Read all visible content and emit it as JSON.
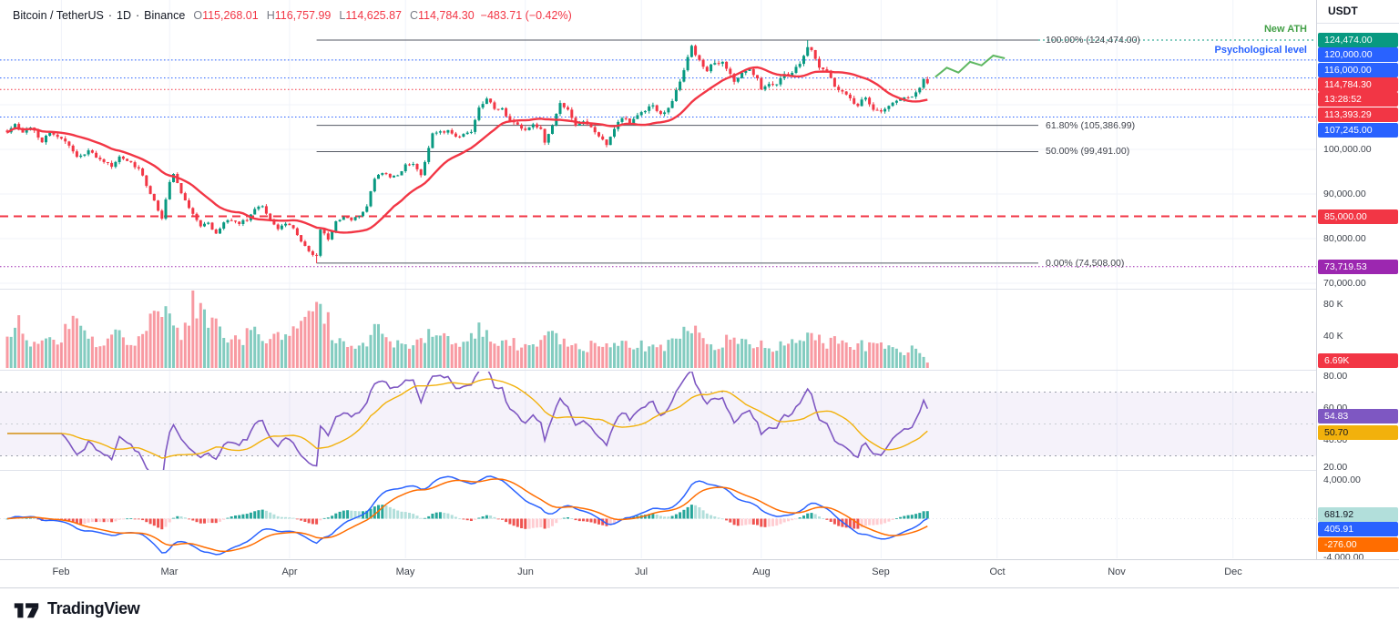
{
  "header": {
    "symbol": "Bitcoin / TetherUS",
    "dot1": "·",
    "interval": "1D",
    "dot2": "·",
    "exchange": "Binance",
    "o_label": "O",
    "o": "115,268.01",
    "h_label": "H",
    "h": "116,757.99",
    "l_label": "L",
    "l": "114,625.87",
    "c_label": "C",
    "c": "114,784.30",
    "change": "−483.71 (−0.42%)"
  },
  "axis": {
    "currency": "USDT",
    "main_ticks": [
      {
        "label": "100,000.00",
        "value": 100000
      },
      {
        "label": "90,000.00",
        "value": 90000
      },
      {
        "label": "80,000.00",
        "value": 80000
      },
      {
        "label": "70,000.00",
        "value": 70000
      }
    ],
    "volume_ticks": [
      {
        "label": "80 K",
        "value": 80000
      },
      {
        "label": "40 K",
        "value": 40000
      }
    ],
    "rsi_ticks": [
      {
        "label": "80.00",
        "value": 80
      },
      {
        "label": "60.00",
        "value": 60
      },
      {
        "label": "40.00",
        "value": 40
      },
      {
        "label": "20.00",
        "value": 20
      }
    ],
    "macd_ticks": [
      {
        "label": "4,000.00",
        "value": 4000
      },
      {
        "label": "-4,000.00",
        "value": -4000
      }
    ],
    "badges": [
      {
        "label": "124,474.00",
        "bg": "#089981",
        "fg": "#ffffff"
      },
      {
        "label": "120,000.00",
        "bg": "#2962ff",
        "fg": "#ffffff"
      },
      {
        "label": "116,000.00",
        "bg": "#2962ff",
        "fg": "#ffffff"
      },
      {
        "label": "114,784.30",
        "bg": "#f23645",
        "fg": "#ffffff"
      },
      {
        "label": "13:28:52",
        "bg": "#f23645",
        "fg": "#ffffff"
      },
      {
        "label": "113,393.29",
        "bg": "#f23645",
        "fg": "#ffffff"
      },
      {
        "label": "107,245.00",
        "bg": "#2962ff",
        "fg": "#ffffff"
      },
      {
        "label": "85,000.00",
        "bg": "#f23645",
        "fg": "#ffffff"
      },
      {
        "label": "73,719.53",
        "bg": "#9c27b0",
        "fg": "#ffffff"
      },
      {
        "label": "6.69K",
        "bg": "#f23645",
        "fg": "#ffffff"
      },
      {
        "label": "54.83",
        "bg": "#7e57c2",
        "fg": "#ffffff"
      },
      {
        "label": "50.70",
        "bg": "#f2b10c",
        "fg": "#131722"
      },
      {
        "label": "681.92",
        "bg": "#b2dfdb",
        "fg": "#131722"
      },
      {
        "label": "405.91",
        "bg": "#2962ff",
        "fg": "#ffffff"
      },
      {
        "label": "-276.00",
        "bg": "#ff6d00",
        "fg": "#ffffff"
      }
    ]
  },
  "annotations": {
    "new_ath": {
      "text": "New ATH",
      "color": "#43a047"
    },
    "psych": {
      "text": "Psychological level",
      "color": "#2962ff"
    }
  },
  "time_axis": {
    "months": [
      {
        "label": "Feb",
        "day": 14
      },
      {
        "label": "Mar",
        "day": 42
      },
      {
        "label": "Apr",
        "day": 73
      },
      {
        "label": "May",
        "day": 103
      },
      {
        "label": "Jun",
        "day": 134
      },
      {
        "label": "Jul",
        "day": 164
      },
      {
        "label": "Aug",
        "day": 195
      },
      {
        "label": "Sep",
        "day": 226
      },
      {
        "label": "Oct",
        "day": 256
      },
      {
        "label": "Nov",
        "day": 287
      },
      {
        "label": "Dec",
        "day": 317
      }
    ]
  },
  "footer": {
    "logo_text": "TradingView"
  },
  "chart_data": {
    "type": "candlestick",
    "symbol": "Bitcoin / TetherUS",
    "interval": "1D",
    "exchange": "Binance",
    "ohlc_today": {
      "open": 115268.01,
      "high": 116757.99,
      "low": 114625.87,
      "close": 114784.3,
      "change": -483.71,
      "change_pct": -0.42
    },
    "last_day": 238,
    "last_close": 114784.3,
    "last_volume": 6690,
    "ath": 124474.0,
    "ath_day": 207,
    "fib_low": 74508.0,
    "fib_low_day": 80,
    "price_axis_range": [
      69000,
      128500
    ],
    "levels": {
      "fib": [
        {
          "label": "100.00% (124,474.00)",
          "pct": 100.0,
          "value": 124474.0
        },
        {
          "label": "61.80% (105,386.99)",
          "pct": 61.8,
          "value": 105386.99
        },
        {
          "label": "50.00% (99,491.00)",
          "pct": 50.0,
          "value": 99491.0
        },
        {
          "label": "0.00% (74,508.00)",
          "pct": 0.0,
          "value": 74508.0
        }
      ],
      "dotted_blue": [
        120000,
        116000,
        107245
      ],
      "dotted_red": [
        113393.29
      ],
      "dashed_red": [
        85000
      ],
      "dotted_purple": [
        73719.53
      ],
      "dotted_green": [
        124474
      ]
    },
    "indicators": {
      "ma": {
        "type": "SMA",
        "length": 20,
        "color": "#f23645"
      },
      "rsi": {
        "value": 54.83,
        "ma_value": 50.7
      },
      "macd": {
        "histogram": 681.92,
        "macd": 405.91,
        "signal": -276.0
      },
      "volume_last_label": "6.69K"
    },
    "price_anchors": [
      [
        0,
        104000
      ],
      [
        2,
        105800
      ],
      [
        4,
        103600
      ],
      [
        6,
        105200
      ],
      [
        9,
        101800
      ],
      [
        11,
        103900
      ],
      [
        14,
        102400
      ],
      [
        16,
        100900
      ],
      [
        18,
        98200
      ],
      [
        21,
        99600
      ],
      [
        24,
        97900
      ],
      [
        27,
        96400
      ],
      [
        29,
        98100
      ],
      [
        32,
        96800
      ],
      [
        34,
        95800
      ],
      [
        36,
        92100
      ],
      [
        38,
        88300
      ],
      [
        40,
        84600
      ],
      [
        42,
        92500
      ],
      [
        43,
        94200
      ],
      [
        45,
        90400
      ],
      [
        47,
        86800
      ],
      [
        50,
        82900
      ],
      [
        52,
        83600
      ],
      [
        54,
        81000
      ],
      [
        56,
        83900
      ],
      [
        58,
        84100
      ],
      [
        60,
        83400
      ],
      [
        62,
        84300
      ],
      [
        64,
        86900
      ],
      [
        66,
        87400
      ],
      [
        68,
        84000
      ],
      [
        70,
        82300
      ],
      [
        72,
        83500
      ],
      [
        74,
        82400
      ],
      [
        76,
        79600
      ],
      [
        78,
        76900
      ],
      [
        80,
        76300
      ],
      [
        81,
        82100
      ],
      [
        83,
        79900
      ],
      [
        85,
        83600
      ],
      [
        87,
        84700
      ],
      [
        89,
        84400
      ],
      [
        91,
        85100
      ],
      [
        93,
        87300
      ],
      [
        95,
        93400
      ],
      [
        97,
        94600
      ],
      [
        99,
        93900
      ],
      [
        101,
        94200
      ],
      [
        103,
        96500
      ],
      [
        105,
        96900
      ],
      [
        107,
        94100
      ],
      [
        110,
        103300
      ],
      [
        112,
        104000
      ],
      [
        114,
        104100
      ],
      [
        116,
        102700
      ],
      [
        118,
        103500
      ],
      [
        120,
        104200
      ],
      [
        122,
        109700
      ],
      [
        124,
        111300
      ],
      [
        126,
        109100
      ],
      [
        128,
        108900
      ],
      [
        130,
        106100
      ],
      [
        132,
        105600
      ],
      [
        134,
        104200
      ],
      [
        136,
        105700
      ],
      [
        138,
        104700
      ],
      [
        139,
        101500
      ],
      [
        141,
        105400
      ],
      [
        143,
        110300
      ],
      [
        145,
        108900
      ],
      [
        147,
        105200
      ],
      [
        149,
        106100
      ],
      [
        151,
        104800
      ],
      [
        153,
        103200
      ],
      [
        155,
        100900
      ],
      [
        157,
        104700
      ],
      [
        159,
        107300
      ],
      [
        161,
        106000
      ],
      [
        163,
        107300
      ],
      [
        165,
        108900
      ],
      [
        167,
        109600
      ],
      [
        169,
        108000
      ],
      [
        171,
        108900
      ],
      [
        173,
        113300
      ],
      [
        175,
        117600
      ],
      [
        177,
        123100
      ],
      [
        179,
        119800
      ],
      [
        181,
        117900
      ],
      [
        183,
        119300
      ],
      [
        185,
        119700
      ],
      [
        187,
        117200
      ],
      [
        188,
        115100
      ],
      [
        190,
        117400
      ],
      [
        192,
        118100
      ],
      [
        194,
        115800
      ],
      [
        195,
        113300
      ],
      [
        197,
        114900
      ],
      [
        199,
        114400
      ],
      [
        201,
        116700
      ],
      [
        203,
        117000
      ],
      [
        205,
        119400
      ],
      [
        207,
        123300
      ],
      [
        208,
        122100
      ],
      [
        210,
        118300
      ],
      [
        212,
        117400
      ],
      [
        214,
        113900
      ],
      [
        216,
        112800
      ],
      [
        218,
        111300
      ],
      [
        220,
        109700
      ],
      [
        222,
        111900
      ],
      [
        224,
        108700
      ],
      [
        226,
        108200
      ],
      [
        228,
        110100
      ],
      [
        230,
        110500
      ],
      [
        232,
        111300
      ],
      [
        234,
        112000
      ],
      [
        236,
        113800
      ],
      [
        237,
        115600
      ],
      [
        238,
        114784.3
      ]
    ],
    "volume_anchors": [
      [
        0,
        32000
      ],
      [
        3,
        55000
      ],
      [
        6,
        28000
      ],
      [
        9,
        40000
      ],
      [
        12,
        30000
      ],
      [
        15,
        45000
      ],
      [
        18,
        60000
      ],
      [
        21,
        35000
      ],
      [
        24,
        28000
      ],
      [
        27,
        42000
      ],
      [
        30,
        38000
      ],
      [
        33,
        30000
      ],
      [
        36,
        52000
      ],
      [
        38,
        78000
      ],
      [
        40,
        70000
      ],
      [
        42,
        60000
      ],
      [
        45,
        45000
      ],
      [
        48,
        80000
      ],
      [
        50,
        72000
      ],
      [
        52,
        50000
      ],
      [
        54,
        62000
      ],
      [
        57,
        40000
      ],
      [
        60,
        35000
      ],
      [
        63,
        45000
      ],
      [
        66,
        38000
      ],
      [
        69,
        42000
      ],
      [
        72,
        35000
      ],
      [
        75,
        48000
      ],
      [
        78,
        65000
      ],
      [
        80,
        85000
      ],
      [
        81,
        80000
      ],
      [
        84,
        45000
      ],
      [
        87,
        38000
      ],
      [
        90,
        30000
      ],
      [
        93,
        36000
      ],
      [
        95,
        48000
      ],
      [
        98,
        35000
      ],
      [
        101,
        28000
      ],
      [
        104,
        32000
      ],
      [
        107,
        30000
      ],
      [
        110,
        48000
      ],
      [
        113,
        35000
      ],
      [
        116,
        30000
      ],
      [
        119,
        32000
      ],
      [
        122,
        45000
      ],
      [
        125,
        38000
      ],
      [
        128,
        32000
      ],
      [
        131,
        30000
      ],
      [
        134,
        28000
      ],
      [
        137,
        30000
      ],
      [
        139,
        38000
      ],
      [
        143,
        40000
      ],
      [
        146,
        30000
      ],
      [
        149,
        26000
      ],
      [
        152,
        28000
      ],
      [
        155,
        35000
      ],
      [
        158,
        32000
      ],
      [
        161,
        26000
      ],
      [
        164,
        28000
      ],
      [
        167,
        30000
      ],
      [
        170,
        26000
      ],
      [
        173,
        38000
      ],
      [
        175,
        45000
      ],
      [
        177,
        48000
      ],
      [
        180,
        36000
      ],
      [
        183,
        30000
      ],
      [
        186,
        34000
      ],
      [
        189,
        30000
      ],
      [
        192,
        28000
      ],
      [
        195,
        36000
      ],
      [
        198,
        26000
      ],
      [
        201,
        28000
      ],
      [
        204,
        30000
      ],
      [
        207,
        44000
      ],
      [
        209,
        38000
      ],
      [
        212,
        30000
      ],
      [
        215,
        32000
      ],
      [
        218,
        26000
      ],
      [
        221,
        28000
      ],
      [
        224,
        30000
      ],
      [
        227,
        24000
      ],
      [
        230,
        20000
      ],
      [
        233,
        22000
      ],
      [
        236,
        24000
      ],
      [
        238,
        6690
      ]
    ],
    "projection_line": [
      [
        240,
        116200
      ],
      [
        243,
        118300
      ],
      [
        246,
        117200
      ],
      [
        249,
        119600
      ],
      [
        252,
        118800
      ],
      [
        255,
        121000
      ],
      [
        258,
        120400
      ]
    ]
  }
}
